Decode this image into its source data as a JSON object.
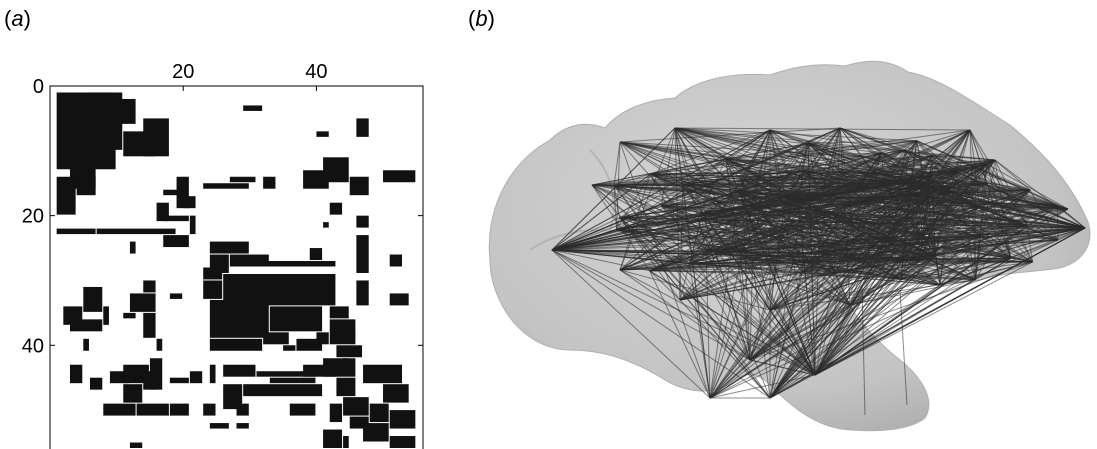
{
  "panels": {
    "a_label": "a",
    "b_label": "b"
  },
  "chart_data": {
    "type": "heatmap",
    "title": "",
    "size": 56,
    "xticks": [
      0,
      20,
      40
    ],
    "yticks": [
      0,
      20,
      40
    ],
    "xtick_labels": [
      "0",
      "20",
      "40"
    ],
    "ytick_labels": [
      "0",
      "20",
      "40"
    ],
    "axis_range": [
      0,
      56
    ],
    "xaxis_position": "top",
    "blocks": [
      [
        1,
        1,
        9,
        12
      ],
      [
        10,
        2,
        3,
        4
      ],
      [
        6,
        1,
        5,
        9
      ],
      [
        3,
        12,
        4,
        4
      ],
      [
        1,
        14,
        3,
        6
      ],
      [
        4,
        14,
        3,
        3
      ],
      [
        11,
        7,
        5,
        4
      ],
      [
        14,
        5,
        4,
        6
      ],
      [
        29,
        3,
        3,
        1
      ],
      [
        40,
        7,
        2,
        1
      ],
      [
        46,
        5,
        2,
        3
      ],
      [
        41,
        11,
        4,
        4
      ],
      [
        38,
        13,
        4,
        3
      ],
      [
        32,
        14,
        2,
        2
      ],
      [
        27,
        14,
        4,
        1
      ],
      [
        23,
        15,
        7,
        1
      ],
      [
        19,
        14,
        2,
        5
      ],
      [
        17,
        16,
        3,
        1
      ],
      [
        20,
        17,
        2,
        2
      ],
      [
        16,
        18,
        2,
        3
      ],
      [
        17,
        20,
        4,
        1
      ],
      [
        21,
        20,
        1,
        3
      ],
      [
        45,
        14,
        3,
        3
      ],
      [
        50,
        13,
        5,
        2
      ],
      [
        42,
        18,
        2,
        2
      ],
      [
        46,
        20,
        2,
        2
      ],
      [
        1,
        22,
        6,
        1
      ],
      [
        7,
        22,
        12,
        1
      ],
      [
        12,
        24,
        1,
        2
      ],
      [
        17,
        23,
        4,
        2
      ],
      [
        24,
        24,
        6,
        2
      ],
      [
        27,
        26,
        6,
        2
      ],
      [
        24,
        26,
        3,
        3
      ],
      [
        31,
        27,
        12,
        1
      ],
      [
        23,
        28,
        3,
        2
      ],
      [
        26,
        29,
        17,
        5
      ],
      [
        23,
        30,
        3,
        3
      ],
      [
        14,
        30,
        2,
        2
      ],
      [
        18,
        32,
        2,
        1
      ],
      [
        5,
        31,
        3,
        4
      ],
      [
        2,
        34,
        3,
        3
      ],
      [
        3,
        36,
        5,
        2
      ],
      [
        8,
        34,
        1,
        3
      ],
      [
        12,
        32,
        4,
        3
      ],
      [
        11,
        35,
        2,
        1
      ],
      [
        14,
        35,
        2,
        4
      ],
      [
        24,
        33,
        9,
        6
      ],
      [
        33,
        34,
        8,
        4
      ],
      [
        42,
        34,
        3,
        2
      ],
      [
        42,
        36,
        4,
        4
      ],
      [
        46,
        30,
        2,
        4
      ],
      [
        46,
        23,
        2,
        6
      ],
      [
        51,
        32,
        3,
        2
      ],
      [
        51,
        26,
        2,
        2
      ],
      [
        24,
        39,
        8,
        2
      ],
      [
        32,
        38,
        4,
        2
      ],
      [
        37,
        39,
        4,
        2
      ],
      [
        43,
        40,
        4,
        2
      ],
      [
        5,
        39,
        1,
        2
      ],
      [
        3,
        43,
        2,
        3
      ],
      [
        6,
        45,
        2,
        2
      ],
      [
        9,
        44,
        3,
        2
      ],
      [
        11,
        43,
        4,
        3
      ],
      [
        15,
        42,
        2,
        5
      ],
      [
        11,
        46,
        3,
        3
      ],
      [
        14,
        44,
        2,
        3
      ],
      [
        18,
        45,
        3,
        1
      ],
      [
        21,
        44,
        2,
        2
      ],
      [
        24,
        43,
        1,
        3
      ],
      [
        26,
        43,
        5,
        2
      ],
      [
        31,
        44,
        9,
        1
      ],
      [
        29,
        46,
        12,
        2
      ],
      [
        26,
        46,
        3,
        4
      ],
      [
        33,
        45,
        7,
        1
      ],
      [
        38,
        43,
        5,
        2
      ],
      [
        41,
        42,
        5,
        3
      ],
      [
        43,
        45,
        3,
        3
      ],
      [
        47,
        43,
        6,
        3
      ],
      [
        50,
        46,
        4,
        3
      ],
      [
        44,
        48,
        4,
        3
      ],
      [
        48,
        49,
        3,
        3
      ],
      [
        51,
        50,
        4,
        3
      ],
      [
        45,
        51,
        3,
        2
      ],
      [
        47,
        52,
        4,
        3
      ],
      [
        51,
        54,
        4,
        2
      ],
      [
        8,
        49,
        5,
        2
      ],
      [
        13,
        49,
        5,
        2
      ],
      [
        18,
        49,
        3,
        2
      ],
      [
        23,
        49,
        2,
        2
      ],
      [
        28,
        49,
        2,
        2
      ],
      [
        24,
        52,
        3,
        1
      ],
      [
        28,
        52,
        2,
        1
      ],
      [
        36,
        49,
        4,
        2
      ],
      [
        42,
        49,
        2,
        3
      ],
      [
        16,
        39,
        1,
        2
      ],
      [
        12,
        55,
        2,
        1
      ],
      [
        41,
        53,
        3,
        3
      ],
      [
        44,
        54,
        1,
        2
      ],
      [
        35,
        40,
        2,
        1
      ],
      [
        40,
        38,
        2,
        2
      ],
      [
        45,
        38,
        1,
        1
      ],
      [
        39,
        25,
        2,
        2
      ],
      [
        41,
        21,
        1,
        1
      ],
      [
        44,
        42,
        1,
        1
      ]
    ]
  },
  "brain": {
    "surface_color": "#c9c9c9",
    "edge_color": "#2b2b2b"
  }
}
